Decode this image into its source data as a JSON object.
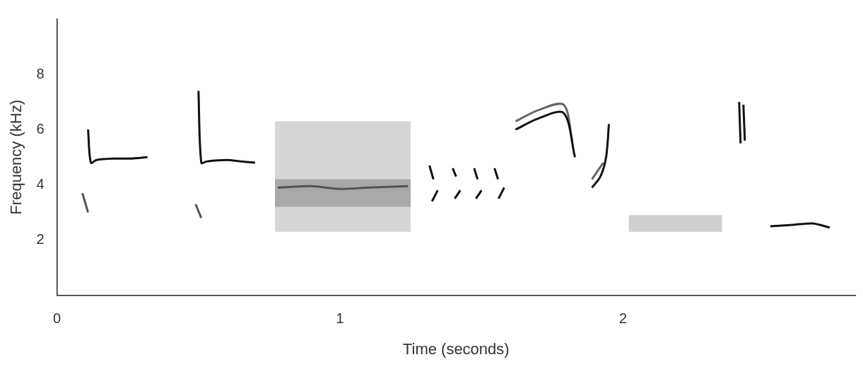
{
  "chart_data": {
    "type": "line",
    "x_label": "Time (seconds)",
    "y_label": "Frequency (kHz)",
    "xlim": [
      0,
      2.82
    ],
    "xticks": [
      0,
      1,
      2
    ],
    "ylim": [
      0,
      10
    ],
    "yticks": [
      2,
      4,
      6,
      8
    ],
    "grid": false,
    "series": [
      {
        "color": "#111111",
        "x": [
          0.11,
          0.12,
          0.14,
          0.2,
          0.26,
          0.32
        ],
        "values": [
          6.0,
          4.8,
          4.9,
          4.95,
          4.95,
          5.0
        ]
      },
      {
        "color": "#555555",
        "x": [
          0.09,
          0.11
        ],
        "values": [
          3.7,
          3.0
        ]
      },
      {
        "color": "#111111",
        "x": [
          0.5,
          0.51,
          0.53,
          0.6,
          0.65,
          0.7
        ],
        "values": [
          7.4,
          4.8,
          4.85,
          4.9,
          4.85,
          4.8
        ]
      },
      {
        "color": "#555555",
        "x": [
          0.49,
          0.51
        ],
        "values": [
          3.3,
          2.8
        ]
      },
      {
        "type": "band",
        "color": "#999999",
        "x": [
          0.77,
          1.25
        ],
        "values": [
          6.3,
          6.3
        ],
        "lower": [
          2.3,
          2.3
        ]
      },
      {
        "type": "band",
        "color": "#444444",
        "x": [
          0.77,
          1.25
        ],
        "values": [
          4.2,
          4.2
        ],
        "lower": [
          3.2,
          3.2
        ]
      },
      {
        "color": "#111111",
        "x": [
          0.78,
          0.9,
          1.0,
          1.1,
          1.24
        ],
        "values": [
          3.9,
          3.95,
          3.85,
          3.9,
          3.95
        ]
      },
      {
        "color": "#111111",
        "x": [
          1.316,
          1.33
        ],
        "values": [
          4.7,
          4.2
        ]
      },
      {
        "color": "#111111",
        "x": [
          1.398,
          1.41
        ],
        "values": [
          4.6,
          4.3
        ]
      },
      {
        "color": "#111111",
        "x": [
          1.474,
          1.486
        ],
        "values": [
          4.6,
          4.2
        ]
      },
      {
        "color": "#111111",
        "x": [
          1.546,
          1.558
        ],
        "values": [
          4.6,
          4.2
        ]
      },
      {
        "color": "#111111",
        "x": [
          1.325,
          1.345
        ],
        "values": [
          3.4,
          3.8
        ]
      },
      {
        "color": "#111111",
        "x": [
          1.405,
          1.425
        ],
        "values": [
          3.5,
          3.8
        ]
      },
      {
        "color": "#111111",
        "x": [
          1.48,
          1.5
        ],
        "values": [
          3.5,
          3.8
        ]
      },
      {
        "color": "#111111",
        "x": [
          1.56,
          1.58
        ],
        "values": [
          3.5,
          3.9
        ]
      },
      {
        "color": "#111111",
        "x": [
          1.62,
          1.7,
          1.79,
          1.83
        ],
        "values": [
          6.0,
          6.4,
          6.6,
          5.0
        ]
      },
      {
        "color": "#666666",
        "x": [
          1.62,
          1.7,
          1.79,
          1.82
        ],
        "values": [
          6.3,
          6.7,
          6.9,
          5.6
        ]
      },
      {
        "color": "#111111",
        "x": [
          1.89,
          1.92,
          1.94,
          1.95
        ],
        "values": [
          3.9,
          4.3,
          5.0,
          6.2
        ]
      },
      {
        "color": "#666666",
        "x": [
          1.89,
          1.91,
          1.93
        ],
        "values": [
          4.2,
          4.5,
          4.8
        ]
      },
      {
        "type": "band",
        "color": "#888888",
        "x": [
          2.02,
          2.35
        ],
        "values": [
          2.9,
          2.9
        ],
        "lower": [
          2.3,
          2.3
        ]
      },
      {
        "color": "#111111",
        "x": [
          2.41,
          2.415
        ],
        "values": [
          7.0,
          5.5
        ]
      },
      {
        "color": "#111111",
        "x": [
          2.425,
          2.43
        ],
        "values": [
          6.9,
          5.6
        ]
      },
      {
        "color": "#111111",
        "x": [
          2.52,
          2.6,
          2.67,
          2.73
        ],
        "values": [
          2.5,
          2.55,
          2.6,
          2.45
        ]
      }
    ]
  }
}
